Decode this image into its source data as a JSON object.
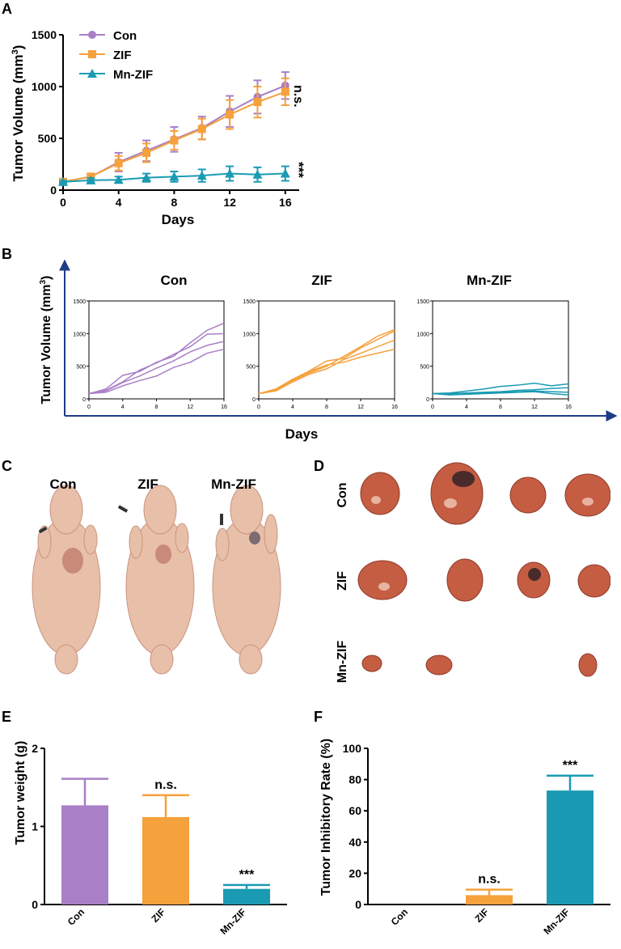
{
  "colors": {
    "con": "#a97fc6",
    "zif": "#f5a13c",
    "mnzif": "#1a9bb3",
    "axis": "#1f3c88"
  },
  "panel_labels": [
    "A",
    "B",
    "C",
    "D",
    "E",
    "F"
  ],
  "chart_data": [
    {
      "panel": "A",
      "type": "line",
      "xlabel": "Days",
      "ylabel_main": "Tumor Volume (mm",
      "ylabel_sup": "3",
      "ylabel_end": ")",
      "xticks": [
        "0",
        "4",
        "8",
        "12",
        "16"
      ],
      "yticks": [
        "0",
        "500",
        "1000",
        "1500"
      ],
      "xlim": [
        0,
        17
      ],
      "ylim": [
        0,
        1500
      ],
      "x": [
        0,
        2,
        4,
        6,
        8,
        10,
        12,
        14,
        16
      ],
      "series": [
        {
          "name": "Con",
          "marker": "circle",
          "values": [
            80,
            130,
            270,
            380,
            490,
            600,
            760,
            900,
            1010
          ],
          "err": [
            20,
            30,
            90,
            100,
            120,
            110,
            150,
            160,
            130
          ]
        },
        {
          "name": "ZIF",
          "marker": "square",
          "values": [
            80,
            130,
            260,
            360,
            480,
            590,
            730,
            850,
            950
          ],
          "err": [
            20,
            30,
            70,
            90,
            90,
            100,
            140,
            150,
            130
          ]
        },
        {
          "name": "Mn-ZIF",
          "marker": "triangle",
          "values": [
            80,
            95,
            100,
            120,
            130,
            140,
            160,
            150,
            160
          ],
          "err": [
            10,
            20,
            30,
            40,
            50,
            60,
            70,
            70,
            70
          ]
        }
      ],
      "annotations": [
        "n.s.",
        "***"
      ]
    },
    {
      "panel": "B",
      "type": "line",
      "xlabel": "Days",
      "ylabel_main": "Tumor Volume (mm",
      "ylabel_sup": "3",
      "ylabel_end": ")",
      "xticks": [
        "0",
        "4",
        "8",
        "12",
        "16"
      ],
      "yticks": [
        "0",
        "500",
        "1000",
        "1500"
      ],
      "xlim": [
        0,
        16
      ],
      "ylim": [
        0,
        1500
      ],
      "x": [
        0,
        2,
        4,
        6,
        8,
        10,
        12,
        14,
        16
      ],
      "groups": [
        {
          "title": "Con",
          "color_key": "con",
          "lines": [
            [
              80,
              150,
              360,
              420,
              560,
              650,
              860,
              1050,
              1160
            ],
            [
              80,
              130,
              260,
              440,
              550,
              680,
              800,
              990,
              1000
            ],
            [
              80,
              120,
              250,
              350,
              470,
              580,
              720,
              820,
              880
            ],
            [
              80,
              100,
              200,
              280,
              350,
              480,
              560,
              700,
              760
            ]
          ]
        },
        {
          "title": "ZIF",
          "color_key": "zif",
          "lines": [
            [
              80,
              150,
              300,
              430,
              580,
              620,
              780,
              910,
              1040
            ],
            [
              80,
              130,
              280,
              400,
              500,
              650,
              800,
              960,
              1060
            ],
            [
              80,
              120,
              260,
              380,
              460,
              600,
              700,
              800,
              900
            ],
            [
              80,
              140,
              290,
              420,
              520,
              560,
              640,
              700,
              760
            ]
          ]
        },
        {
          "title": "Mn-ZIF",
          "color_key": "mnzif",
          "lines": [
            [
              80,
              90,
              120,
              150,
              190,
              210,
              240,
              200,
              230
            ],
            [
              80,
              80,
              90,
              100,
              110,
              130,
              140,
              160,
              170
            ],
            [
              80,
              70,
              80,
              90,
              100,
              110,
              120,
              110,
              100
            ],
            [
              80,
              60,
              70,
              80,
              90,
              100,
              110,
              80,
              60
            ]
          ]
        }
      ]
    },
    {
      "panel": "E",
      "type": "bar",
      "ylabel": "Tumor weight (g)",
      "categories": [
        "Con",
        "ZIF",
        "Mn-ZIF"
      ],
      "values": [
        1.27,
        1.12,
        0.2
      ],
      "err": [
        0.34,
        0.28,
        0.05
      ],
      "ylim": [
        0,
        2
      ],
      "yticks": [
        "0",
        "1",
        "2"
      ],
      "annotations": [
        "",
        "n.s.",
        "***"
      ]
    },
    {
      "panel": "F",
      "type": "bar",
      "ylabel": "Tumor Inhibitory Rate (%)",
      "categories": [
        "Con",
        "ZIF",
        "Mn-ZIF"
      ],
      "values": [
        0,
        6,
        73
      ],
      "err": [
        0,
        3.5,
        9.5
      ],
      "ylim": [
        0,
        100
      ],
      "yticks": [
        "0",
        "20",
        "40",
        "60",
        "80",
        "100"
      ],
      "annotations": [
        "",
        "n.s.",
        "***"
      ]
    }
  ],
  "photo_c": {
    "labels": [
      "Con",
      "ZIF",
      "Mn-ZIF"
    ]
  },
  "photo_d": {
    "row_labels": [
      "Con",
      "ZIF",
      "Mn-ZIF"
    ]
  }
}
